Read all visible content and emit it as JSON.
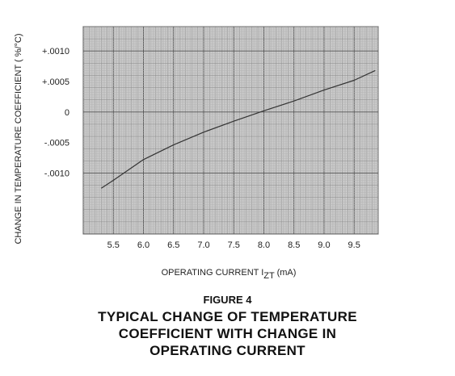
{
  "figure": {
    "number": "FIGURE 4",
    "title_lines": [
      "TYPICAL CHANGE OF TEMPERATURE",
      "COEFFICIENT WITH CHANGE IN",
      "OPERATING CURRENT"
    ]
  },
  "chart_data": {
    "type": "line",
    "title": "FIGURE 4 TYPICAL CHANGE OF TEMPERATURE COEFFICIENT WITH CHANGE IN OPERATING CURRENT",
    "xlabel": "OPERATING CURRENT I",
    "xlabel_subscript": "ZT",
    "xlabel_unit": " (mA)",
    "ylabel": "CHANGE IN TEMPERATURE COEFFICIENT ( %/°C)",
    "x_ticks": [
      5.5,
      6.0,
      6.5,
      7.0,
      7.5,
      8.0,
      8.5,
      9.0,
      9.5
    ],
    "x_tick_labels": [
      "5.5",
      "6.0",
      "6.5",
      "7.0",
      "7.5",
      "8.0",
      "8.5",
      "9.0",
      "9.5"
    ],
    "y_ticks": [
      0.001,
      0.0005,
      0,
      -0.0005,
      -0.001
    ],
    "y_tick_labels": [
      "+.0010",
      "+.0005",
      "0",
      "-.0005",
      "-.0010"
    ],
    "xlim": [
      5.0,
      9.9
    ],
    "ylim": [
      -0.002,
      0.0014
    ],
    "grid": true,
    "series": [
      {
        "x": [
          5.3,
          5.5,
          6.0,
          6.5,
          7.0,
          7.5,
          8.0,
          8.5,
          9.0,
          9.5,
          9.85
        ],
        "y": [
          -0.00125,
          -0.00112,
          -0.00078,
          -0.00054,
          -0.00033,
          -0.00015,
          2e-05,
          0.00018,
          0.00036,
          0.00052,
          0.00068
        ]
      }
    ]
  }
}
